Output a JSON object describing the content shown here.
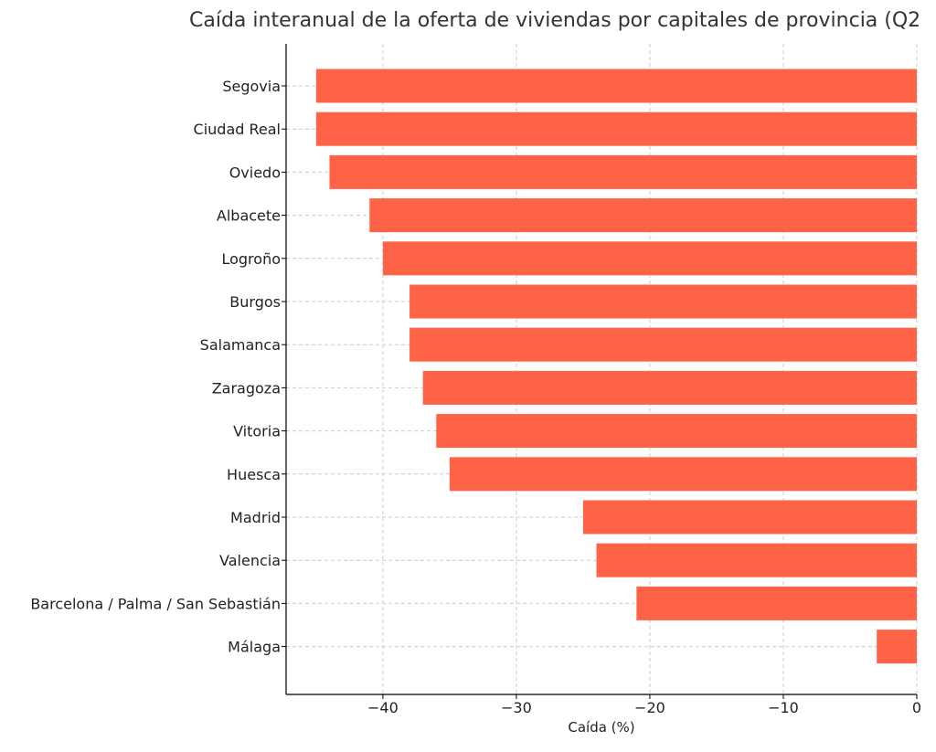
{
  "chart_data": {
    "type": "bar",
    "orientation": "horizontal",
    "title": "Caída interanual de la oferta de viviendas por capitales de provincia (Q2",
    "xlabel": "Caída (%)",
    "ylabel": "",
    "categories": [
      "Segovia",
      "Ciudad Real",
      "Oviedo",
      "Albacete",
      "Logroño",
      "Burgos",
      "Salamanca",
      "Zaragoza",
      "Vitoria",
      "Huesca",
      "Madrid",
      "Valencia",
      "Barcelona / Palma / San Sebastián",
      "Málaga"
    ],
    "values": [
      -45,
      -45,
      -44,
      -41,
      -40,
      -38,
      -38,
      -37,
      -36,
      -35,
      -25,
      -24,
      -21,
      -3
    ],
    "xlim": [
      -47.25,
      0
    ],
    "xticks": [
      -40,
      -30,
      -20,
      -10,
      0
    ],
    "xtick_labels": [
      "−40",
      "−30",
      "−20",
      "−10",
      "0"
    ],
    "grid": true,
    "bar_color": "#ff6347"
  }
}
